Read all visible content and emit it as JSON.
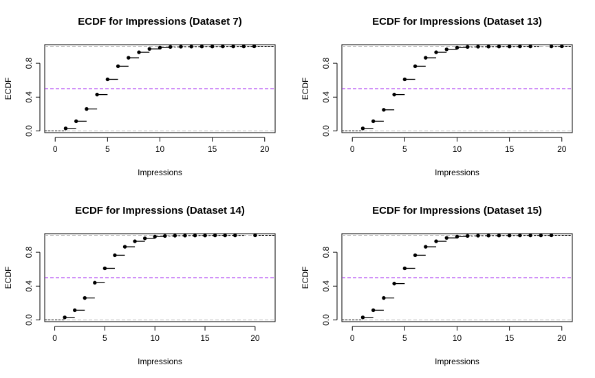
{
  "chart_data": [
    {
      "type": "line",
      "subtype": "ecdf",
      "title": "ECDF for Impressions (Dataset 7)",
      "xlabel": "Impressions",
      "ylabel": "ECDF",
      "xlim": [
        -1,
        21
      ],
      "ylim": [
        -0.02,
        1.02
      ],
      "xticks": [
        "0",
        "5",
        "10",
        "15",
        "20"
      ],
      "yticks": [
        "0.0",
        "0.4",
        "0.8"
      ],
      "x": [
        1,
        2,
        3,
        4,
        5,
        6,
        7,
        8,
        9,
        10,
        11,
        12,
        13,
        14,
        15,
        16,
        17,
        18,
        19
      ],
      "values": [
        0.03,
        0.115,
        0.26,
        0.43,
        0.61,
        0.765,
        0.865,
        0.93,
        0.97,
        0.985,
        0.993,
        0.996,
        0.997,
        0.998,
        0.998,
        0.999,
        0.999,
        0.999,
        1.0
      ],
      "ref_lines": [
        0,
        0.5,
        1
      ],
      "ref_colors": [
        "#bebebe",
        "#a020f0",
        "#bebebe"
      ]
    },
    {
      "type": "line",
      "subtype": "ecdf",
      "title": "ECDF for Impressions (Dataset 13)",
      "xlabel": "Impressions",
      "ylabel": "ECDF",
      "xlim": [
        -1,
        21
      ],
      "ylim": [
        -0.02,
        1.02
      ],
      "xticks": [
        "0",
        "5",
        "10",
        "15",
        "20"
      ],
      "yticks": [
        "0.0",
        "0.4",
        "0.8"
      ],
      "x": [
        1,
        2,
        3,
        4,
        5,
        6,
        7,
        8,
        9,
        10,
        11,
        12,
        13,
        14,
        15,
        16,
        17,
        19,
        20
      ],
      "values": [
        0.03,
        0.115,
        0.25,
        0.43,
        0.61,
        0.765,
        0.865,
        0.93,
        0.965,
        0.985,
        0.993,
        0.996,
        0.997,
        0.998,
        0.998,
        0.999,
        0.999,
        0.999,
        1.0
      ],
      "ref_lines": [
        0,
        0.5,
        1
      ],
      "ref_colors": [
        "#bebebe",
        "#a020f0",
        "#bebebe"
      ]
    },
    {
      "type": "line",
      "subtype": "ecdf",
      "title": "ECDF for Impressions (Dataset 14)",
      "xlabel": "Impressions",
      "ylabel": "ECDF",
      "xlim": [
        -1,
        22
      ],
      "ylim": [
        -0.02,
        1.02
      ],
      "xticks": [
        "0",
        "5",
        "10",
        "15",
        "20"
      ],
      "yticks": [
        "0.0",
        "0.4",
        "0.8"
      ],
      "x": [
        1,
        2,
        3,
        4,
        5,
        6,
        7,
        8,
        9,
        10,
        11,
        12,
        13,
        14,
        15,
        16,
        17,
        18,
        20
      ],
      "values": [
        0.03,
        0.115,
        0.26,
        0.44,
        0.61,
        0.765,
        0.865,
        0.93,
        0.965,
        0.985,
        0.993,
        0.996,
        0.997,
        0.998,
        0.998,
        0.999,
        0.999,
        0.999,
        1.0
      ],
      "ref_lines": [
        0,
        0.5,
        1
      ],
      "ref_colors": [
        "#bebebe",
        "#a020f0",
        "#bebebe"
      ]
    },
    {
      "type": "line",
      "subtype": "ecdf",
      "title": "ECDF for Impressions (Dataset 15)",
      "xlabel": "Impressions",
      "ylabel": "ECDF",
      "xlim": [
        -1,
        21
      ],
      "ylim": [
        -0.02,
        1.02
      ],
      "xticks": [
        "0",
        "5",
        "10",
        "15",
        "20"
      ],
      "yticks": [
        "0.0",
        "0.4",
        "0.8"
      ],
      "x": [
        1,
        2,
        3,
        4,
        5,
        6,
        7,
        8,
        9,
        10,
        11,
        12,
        13,
        14,
        15,
        16,
        17,
        18,
        19
      ],
      "values": [
        0.03,
        0.115,
        0.26,
        0.43,
        0.61,
        0.765,
        0.865,
        0.93,
        0.97,
        0.985,
        0.993,
        0.996,
        0.997,
        0.998,
        0.998,
        0.999,
        0.999,
        0.999,
        1.0
      ],
      "ref_lines": [
        0,
        0.5,
        1
      ],
      "ref_colors": [
        "#bebebe",
        "#a020f0",
        "#bebebe"
      ]
    }
  ]
}
